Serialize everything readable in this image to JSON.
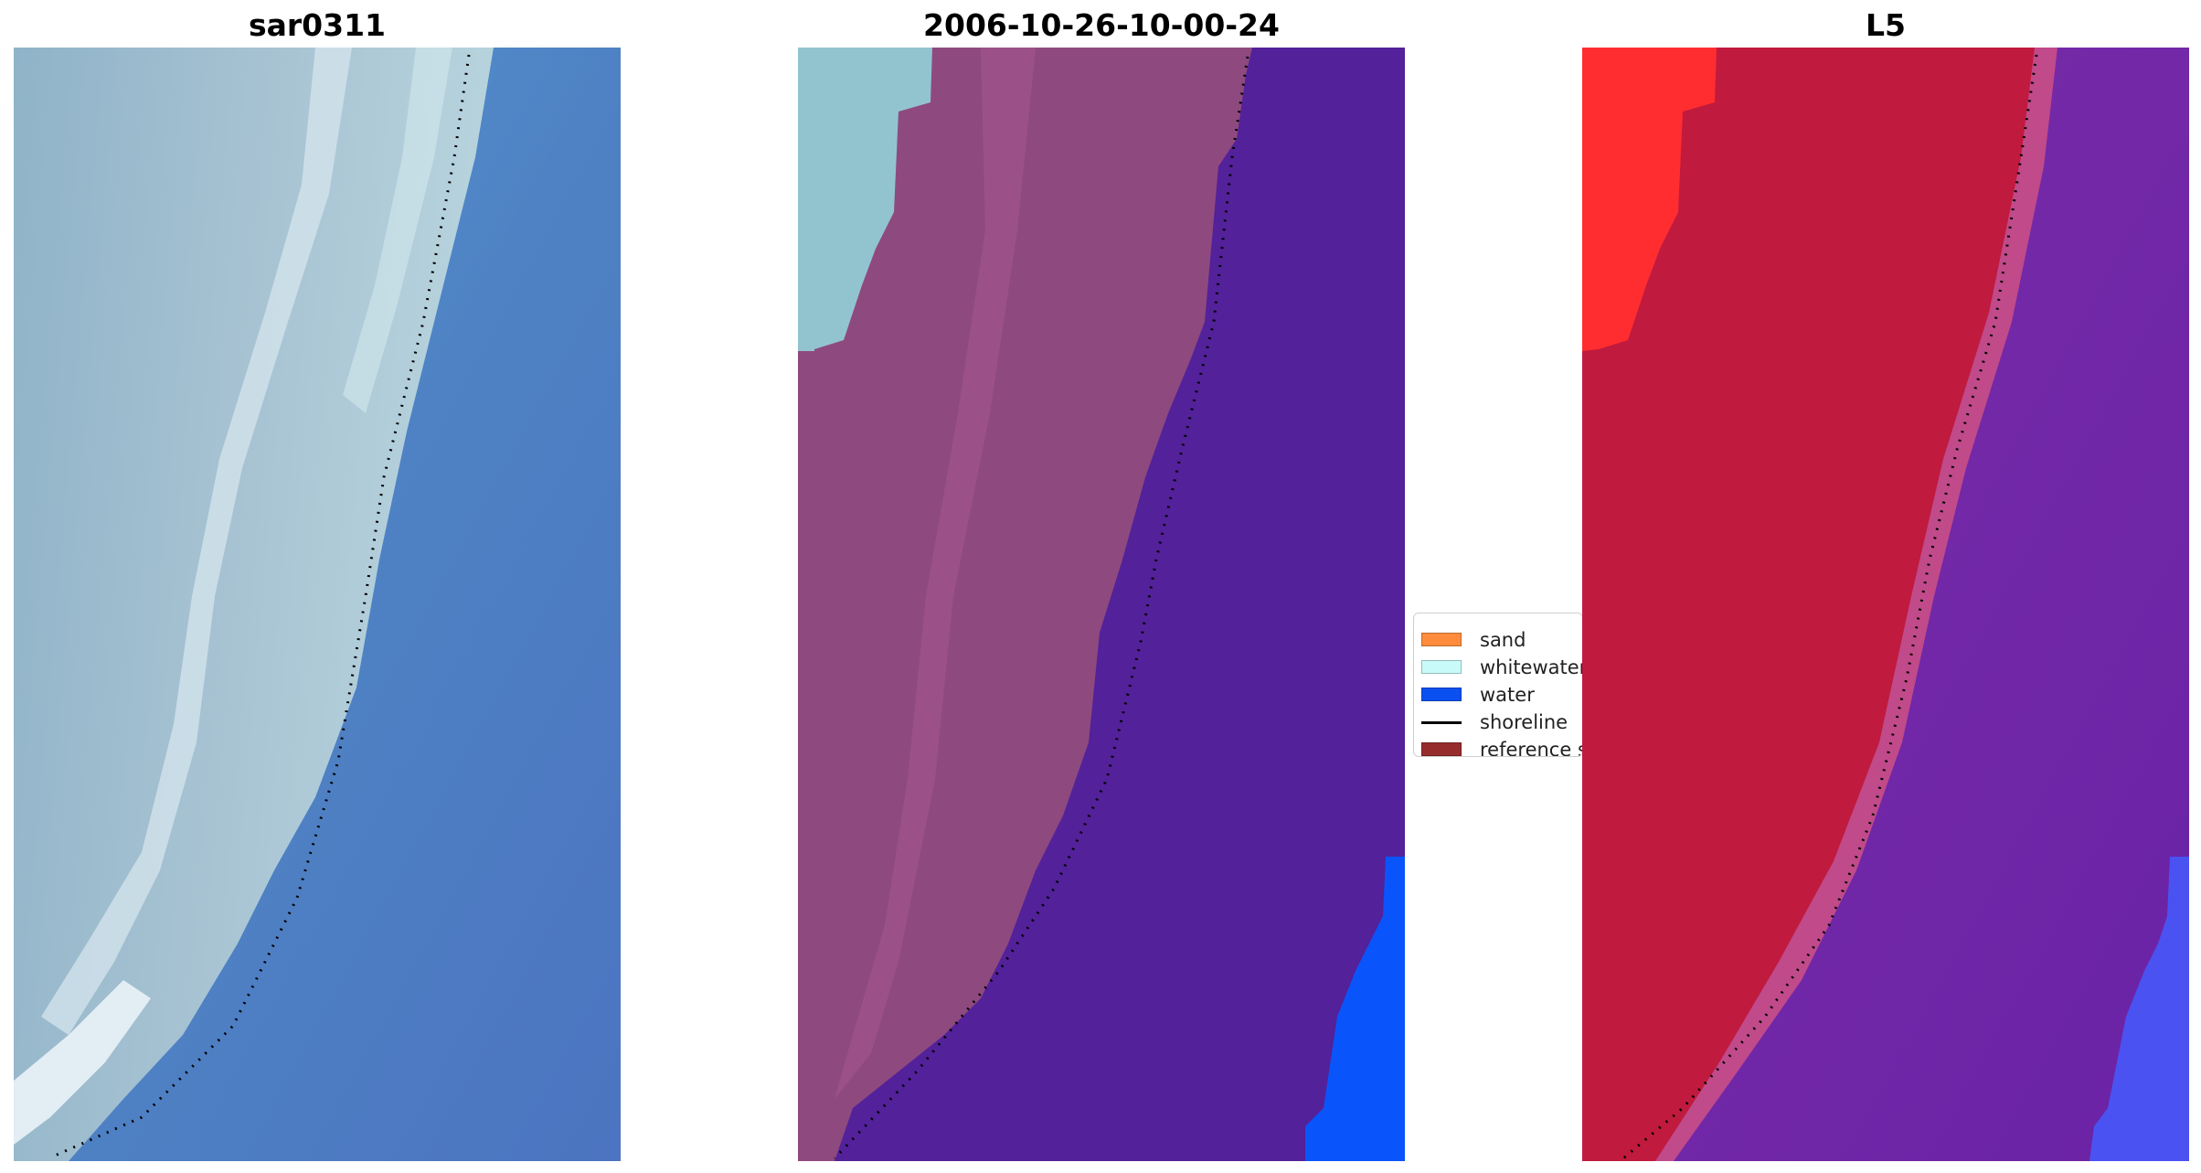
{
  "panels": [
    {
      "title": "sar0311"
    },
    {
      "title": "2006-10-26-10-00-24"
    },
    {
      "title": "L5"
    }
  ],
  "legend": {
    "items": [
      {
        "label": "sand",
        "kind": "patch",
        "color": "#ff8c3c"
      },
      {
        "label": "whitewater",
        "kind": "patch",
        "color": "#c8fafa"
      },
      {
        "label": "water",
        "kind": "patch",
        "color": "#0a50f0"
      },
      {
        "label": "shoreline",
        "kind": "line",
        "color": "#000000"
      },
      {
        "label": "reference s",
        "kind": "patch",
        "color": "#962d2d"
      }
    ]
  },
  "colors": {
    "rgb_land": "#93b4c9",
    "rgb_water": "#4d80c6",
    "classified_land": "#8f4a7f",
    "classified_water": "#53219a",
    "classified_whitewater": "#92c4cf",
    "classified_sea": "#0a50f8",
    "index_land": "#c0143c",
    "index_water": "#7a2aa8",
    "index_sand": "#ff2a2a",
    "index_sea": "#4a4cf0"
  }
}
